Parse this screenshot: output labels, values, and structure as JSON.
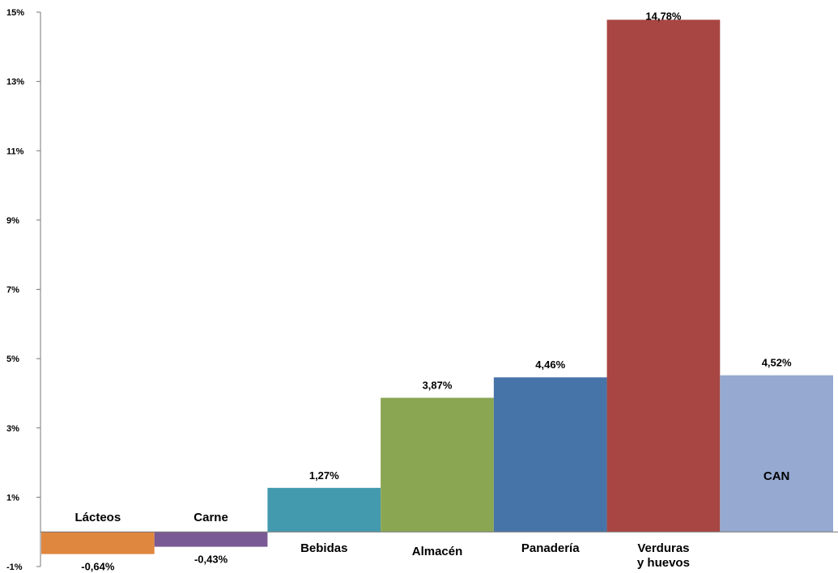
{
  "chart_data": {
    "type": "bar",
    "title": "",
    "xlabel": "",
    "ylabel": "",
    "ylim": [
      -1,
      15
    ],
    "y_ticks": [
      "-1%",
      "1%",
      "3%",
      "5%",
      "7%",
      "9%",
      "11%",
      "13%",
      "15%"
    ],
    "y_tick_values": [
      -1,
      1,
      3,
      5,
      7,
      9,
      11,
      13,
      15
    ],
    "grid": false,
    "legend": "none",
    "bars": [
      {
        "category": "Lácteos",
        "value": -0.64,
        "label": "-0,64%",
        "color": "#E0873F"
      },
      {
        "category": "Carne",
        "value": -0.43,
        "label": "-0,43%",
        "color": "#7A5A94"
      },
      {
        "category": "Bebidas",
        "value": 1.27,
        "label": "1,27%",
        "color": "#4399AD"
      },
      {
        "category": "Almacén",
        "value": 3.87,
        "label": "3,87%",
        "color": "#8BA653"
      },
      {
        "category": "Panadería",
        "value": 4.46,
        "label": "4,46%",
        "color": "#4674A8"
      },
      {
        "category": "Verduras\ny huevos",
        "value": 14.78,
        "label": "14,78%",
        "color": "#A84644"
      },
      {
        "category": "CAN",
        "value": 4.52,
        "label": "4,52%",
        "color": "#95A9D1"
      }
    ]
  }
}
